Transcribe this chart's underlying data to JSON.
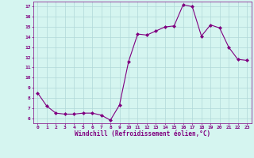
{
  "x": [
    0,
    1,
    2,
    3,
    4,
    5,
    6,
    7,
    8,
    9,
    10,
    11,
    12,
    13,
    14,
    15,
    16,
    17,
    18,
    19,
    20,
    21,
    22,
    23
  ],
  "y": [
    8.5,
    7.2,
    6.5,
    6.4,
    6.4,
    6.5,
    6.5,
    6.3,
    5.8,
    7.3,
    11.6,
    14.3,
    14.2,
    14.6,
    15.0,
    15.1,
    17.2,
    17.0,
    14.1,
    15.2,
    14.9,
    13.0,
    11.8,
    11.7
  ],
  "line_color": "#800080",
  "marker": "D",
  "marker_size": 2,
  "bg_color": "#d5f5f0",
  "grid_color": "#b0d8d8",
  "xlabel": "Windchill (Refroidissement éolien,°C)",
  "xlabel_color": "#800080",
  "tick_color": "#800080",
  "ylim": [
    5.5,
    17.5
  ],
  "yticks": [
    6,
    7,
    8,
    9,
    10,
    11,
    12,
    13,
    14,
    15,
    16,
    17
  ],
  "xlim": [
    -0.5,
    23.5
  ],
  "xticks": [
    0,
    1,
    2,
    3,
    4,
    5,
    6,
    7,
    8,
    9,
    10,
    11,
    12,
    13,
    14,
    15,
    16,
    17,
    18,
    19,
    20,
    21,
    22,
    23
  ]
}
